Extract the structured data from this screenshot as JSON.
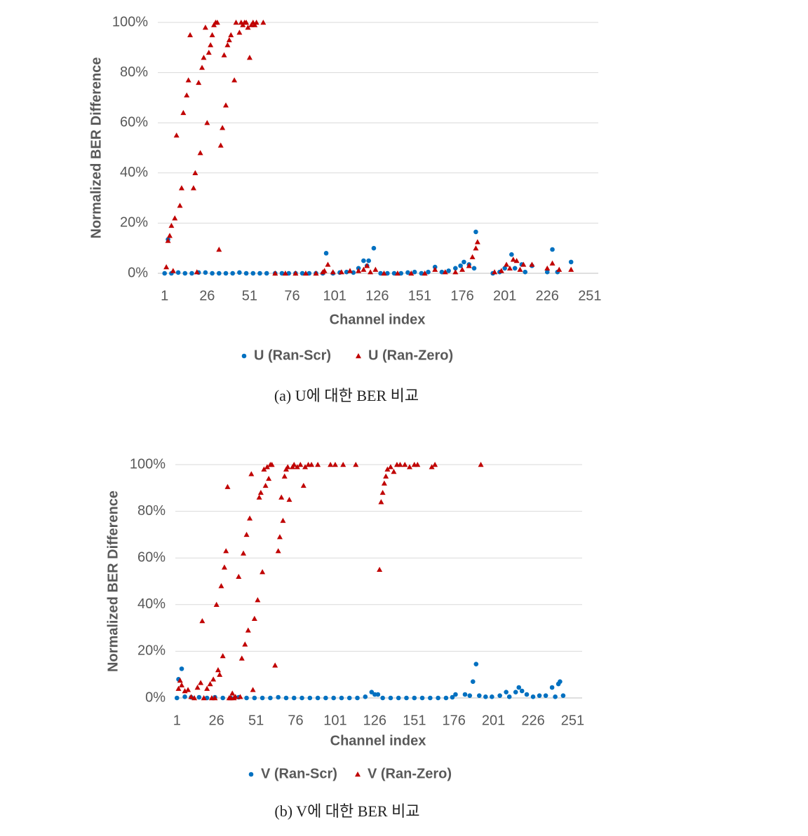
{
  "chart_data": [
    {
      "type": "scatter",
      "y_label": "Normalized BER Difference",
      "x_label": "Channel index",
      "caption": "(a) U에 대한 BER 비교",
      "xlim": [
        -3,
        256
      ],
      "xticks": [
        1,
        26,
        51,
        76,
        101,
        126,
        151,
        176,
        201,
        226,
        251
      ],
      "ylim": [
        0,
        100
      ],
      "yticks": [
        {
          "value": 0,
          "label": "0%"
        },
        {
          "value": 20,
          "label": "20%"
        },
        {
          "value": 40,
          "label": "40%"
        },
        {
          "value": 60,
          "label": "60%"
        },
        {
          "value": 80,
          "label": "80%"
        },
        {
          "value": 100,
          "label": "100%"
        }
      ],
      "grid": true,
      "legend": "bottom",
      "series": [
        {
          "name": "U (Ran-Scr)",
          "color": "#0070c0",
          "marker": "circle",
          "x": [
            1,
            3,
            5,
            9,
            13,
            17,
            21,
            25,
            29,
            33,
            37,
            41,
            45,
            49,
            53,
            57,
            61,
            66,
            70,
            74,
            78,
            82,
            86,
            90,
            94,
            96,
            100,
            104,
            108,
            112,
            115,
            118,
            120,
            121,
            124,
            128,
            132,
            136,
            140,
            144,
            148,
            152,
            156,
            160,
            164,
            168,
            172,
            175,
            177,
            180,
            183,
            184,
            194,
            198,
            201,
            205,
            207,
            211,
            213,
            217,
            226,
            229,
            232,
            240
          ],
          "values": [
            0,
            13.5,
            0,
            0.3,
            0,
            0,
            0.3,
            0.3,
            0,
            0,
            0,
            0,
            0.3,
            0,
            0,
            0,
            0,
            0,
            0,
            0,
            0,
            0,
            0,
            0,
            0,
            8,
            0,
            0.3,
            0.5,
            0.3,
            2,
            5,
            3,
            5,
            10,
            0,
            0,
            0,
            0,
            0.3,
            0.5,
            0,
            0.5,
            2.5,
            0.5,
            1,
            2,
            3,
            4.5,
            3.5,
            2,
            16.5,
            0,
            0.5,
            2,
            7.5,
            2,
            3.5,
            0.5,
            3,
            0.5,
            9.5,
            0.5,
            4.5
          ]
        },
        {
          "name": "U (Ran-Zero)",
          "color": "#c00000",
          "marker": "triangle",
          "x": [
            2,
            3,
            4,
            5,
            6,
            7,
            8,
            10,
            11,
            12,
            14,
            15,
            16,
            18,
            19,
            20,
            21,
            22,
            23,
            24,
            25,
            26,
            27,
            28,
            29,
            30,
            31,
            32,
            33,
            34,
            35,
            36,
            37,
            38,
            39,
            40,
            42,
            43,
            45,
            46,
            47,
            48,
            49,
            50,
            51,
            52,
            53,
            54,
            55,
            59,
            66,
            72,
            78,
            84,
            90,
            94,
            95,
            97,
            100,
            105,
            110,
            115,
            118,
            120,
            122,
            125,
            130,
            138,
            146,
            154,
            160,
            166,
            172,
            176,
            180,
            182,
            184,
            185,
            195,
            199,
            202,
            204,
            206,
            208,
            210,
            212,
            217,
            226,
            229,
            233,
            240
          ],
          "values": [
            2.5,
            13,
            15,
            19,
            1,
            22,
            55,
            27,
            34,
            64,
            71,
            77,
            95,
            34,
            40,
            0.5,
            76,
            48,
            82,
            86,
            98,
            60,
            88,
            91,
            95,
            99,
            100,
            100,
            9.5,
            51,
            58,
            87,
            67,
            91,
            93,
            95,
            77,
            100,
            96,
            100,
            99,
            100,
            100,
            98,
            86,
            99,
            100,
            99,
            100,
            100,
            0,
            0,
            0,
            0,
            0,
            0.5,
            1,
            3.5,
            0.5,
            0.5,
            1,
            1,
            1.5,
            3,
            0.5,
            1.5,
            0,
            0,
            0,
            0,
            1.5,
            0.5,
            0.5,
            1.5,
            3,
            6.5,
            10,
            12.5,
            0.5,
            1,
            3.5,
            2,
            5.5,
            5,
            1.5,
            3.5,
            3.5,
            2,
            4,
            1.5,
            1.5
          ]
        }
      ]
    },
    {
      "type": "scatter",
      "y_label": "Normalized BER Difference",
      "x_label": "Channel index",
      "caption": "(b) V에 대한 BER 비교",
      "xlim": [
        0,
        257
      ],
      "xticks": [
        1,
        26,
        51,
        76,
        101,
        126,
        151,
        176,
        201,
        226,
        251
      ],
      "ylim": [
        0,
        100
      ],
      "yticks": [
        {
          "value": 0,
          "label": "0%"
        },
        {
          "value": 20,
          "label": "20%"
        },
        {
          "value": 40,
          "label": "40%"
        },
        {
          "value": 60,
          "label": "60%"
        },
        {
          "value": 80,
          "label": "80%"
        },
        {
          "value": 100,
          "label": "100%"
        }
      ],
      "grid": true,
      "legend": "bottom",
      "series": [
        {
          "name": "V (Ran-Scr)",
          "color": "#0070c0",
          "marker": "circle",
          "x": [
            1,
            2,
            4,
            6,
            10,
            15,
            20,
            25,
            30,
            35,
            40,
            45,
            50,
            55,
            60,
            65,
            70,
            75,
            80,
            85,
            90,
            95,
            100,
            105,
            110,
            115,
            120,
            124,
            126,
            128,
            131,
            136,
            141,
            146,
            151,
            156,
            161,
            166,
            171,
            175,
            177,
            183,
            186,
            188,
            190,
            192,
            196,
            200,
            205,
            209,
            211,
            215,
            217,
            219,
            222,
            226,
            230,
            234,
            238,
            240,
            242,
            243,
            245
          ],
          "values": [
            0,
            8,
            12.5,
            0.5,
            0.3,
            0.3,
            0,
            0.3,
            0,
            0,
            0.3,
            0,
            0,
            0,
            0,
            0.3,
            0,
            0,
            0,
            0,
            0,
            0,
            0,
            0,
            0,
            0,
            0.5,
            2.5,
            1.5,
            1.5,
            0,
            0,
            0,
            0,
            0,
            0,
            0,
            0,
            0,
            0.3,
            1.5,
            1.5,
            1,
            7,
            14.5,
            1,
            0.5,
            0.5,
            1,
            2.5,
            0.5,
            2.5,
            4.5,
            3,
            1.5,
            0.5,
            1,
            1,
            4.5,
            0.5,
            6,
            7,
            1
          ]
        },
        {
          "name": "V (Ran-Zero)",
          "color": "#c00000",
          "marker": "triangle",
          "x": [
            2,
            3,
            4,
            6,
            8,
            10,
            12,
            14,
            16,
            17,
            18,
            20,
            22,
            23,
            24,
            25,
            26,
            27,
            28,
            29,
            30,
            31,
            32,
            33,
            34,
            35,
            36,
            37,
            38,
            40,
            41,
            42,
            43,
            44,
            45,
            46,
            47,
            48,
            49,
            50,
            52,
            53,
            54,
            55,
            56,
            57,
            58,
            59,
            60,
            61,
            63,
            65,
            66,
            67,
            68,
            69,
            70,
            71,
            72,
            74,
            75,
            77,
            79,
            81,
            82,
            84,
            86,
            90,
            98,
            101,
            106,
            114,
            129,
            130,
            131,
            132,
            133,
            134,
            136,
            138,
            140,
            142,
            145,
            148,
            151,
            153,
            162,
            164,
            193
          ],
          "values": [
            4,
            7.5,
            5.5,
            3,
            3.5,
            0.5,
            0,
            4.5,
            6.5,
            33,
            0,
            4,
            6,
            0,
            8,
            0,
            40,
            12,
            10,
            48,
            18,
            56,
            63,
            90.5,
            0,
            0,
            2,
            0,
            0.5,
            52,
            0.5,
            17,
            62,
            23,
            70,
            29,
            77,
            96,
            3.5,
            34,
            42,
            86,
            88,
            54,
            98,
            91,
            99,
            94,
            100,
            100,
            14,
            63,
            69,
            86,
            76,
            95,
            98,
            99,
            85,
            99,
            100,
            99,
            100,
            91,
            99,
            100,
            100,
            100,
            100,
            100,
            100,
            100,
            55,
            84,
            88,
            92,
            95,
            98,
            99,
            97,
            100,
            100,
            100,
            99,
            100,
            100,
            99,
            100,
            100
          ]
        }
      ]
    }
  ]
}
